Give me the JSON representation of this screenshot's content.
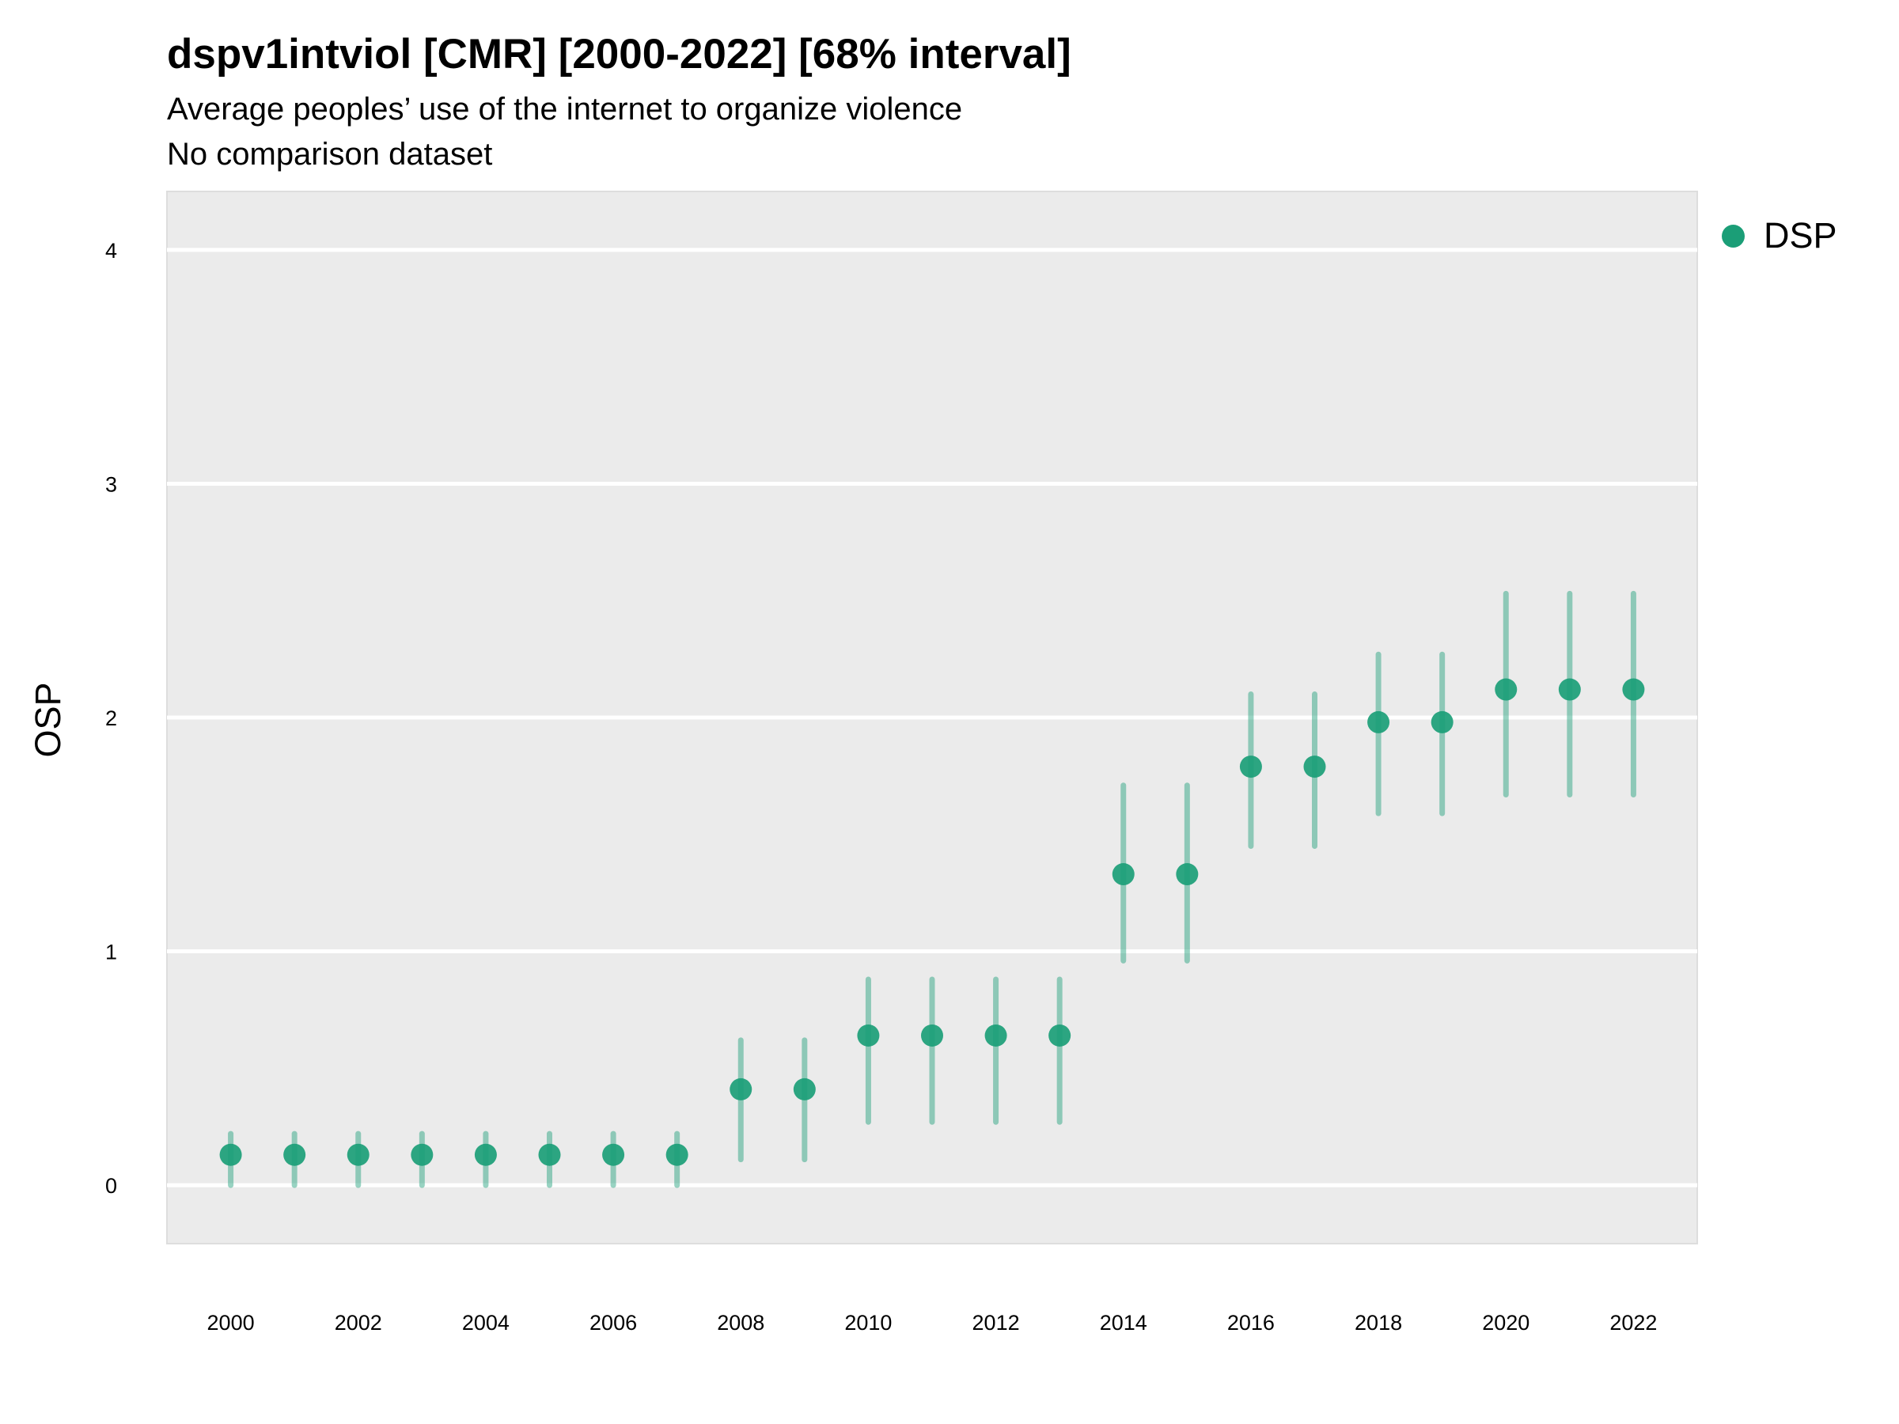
{
  "chart_data": {
    "type": "scatter",
    "title": "dspv1intviol [CMR] [2000-2022] [68% interval]",
    "subtitle": "Average peoples’ use of the internet to organize violence",
    "subtitle2": "No comparison dataset",
    "xlabel": "",
    "ylabel": "OSP",
    "ylim": [
      -0.25,
      4.25
    ],
    "yticks": [
      0,
      1,
      2,
      3,
      4
    ],
    "xlim": [
      1999,
      2023
    ],
    "xticks": [
      2000,
      2002,
      2004,
      2006,
      2008,
      2010,
      2012,
      2014,
      2016,
      2018,
      2020,
      2022
    ],
    "grid": true,
    "legend_position": "top-right",
    "series": [
      {
        "name": "DSP",
        "color": "#1b9e77",
        "x": [
          2000,
          2001,
          2002,
          2003,
          2004,
          2005,
          2006,
          2007,
          2008,
          2009,
          2010,
          2011,
          2012,
          2013,
          2014,
          2015,
          2016,
          2017,
          2018,
          2019,
          2020,
          2021,
          2022
        ],
        "y": [
          0.13,
          0.13,
          0.13,
          0.13,
          0.13,
          0.13,
          0.13,
          0.13,
          0.41,
          0.41,
          0.64,
          0.64,
          0.64,
          0.64,
          1.33,
          1.33,
          1.79,
          1.79,
          1.98,
          1.98,
          2.12,
          2.12,
          2.12
        ],
        "lower": [
          0.0,
          0.0,
          0.0,
          0.0,
          0.0,
          0.0,
          0.0,
          0.0,
          0.11,
          0.11,
          0.27,
          0.27,
          0.27,
          0.27,
          0.96,
          0.96,
          1.45,
          1.45,
          1.59,
          1.59,
          1.67,
          1.67,
          1.67
        ],
        "upper": [
          0.22,
          0.22,
          0.22,
          0.22,
          0.22,
          0.22,
          0.22,
          0.22,
          0.62,
          0.62,
          0.88,
          0.88,
          0.88,
          0.88,
          1.71,
          1.71,
          2.1,
          2.1,
          2.27,
          2.27,
          2.53,
          2.53,
          2.53
        ]
      }
    ]
  }
}
